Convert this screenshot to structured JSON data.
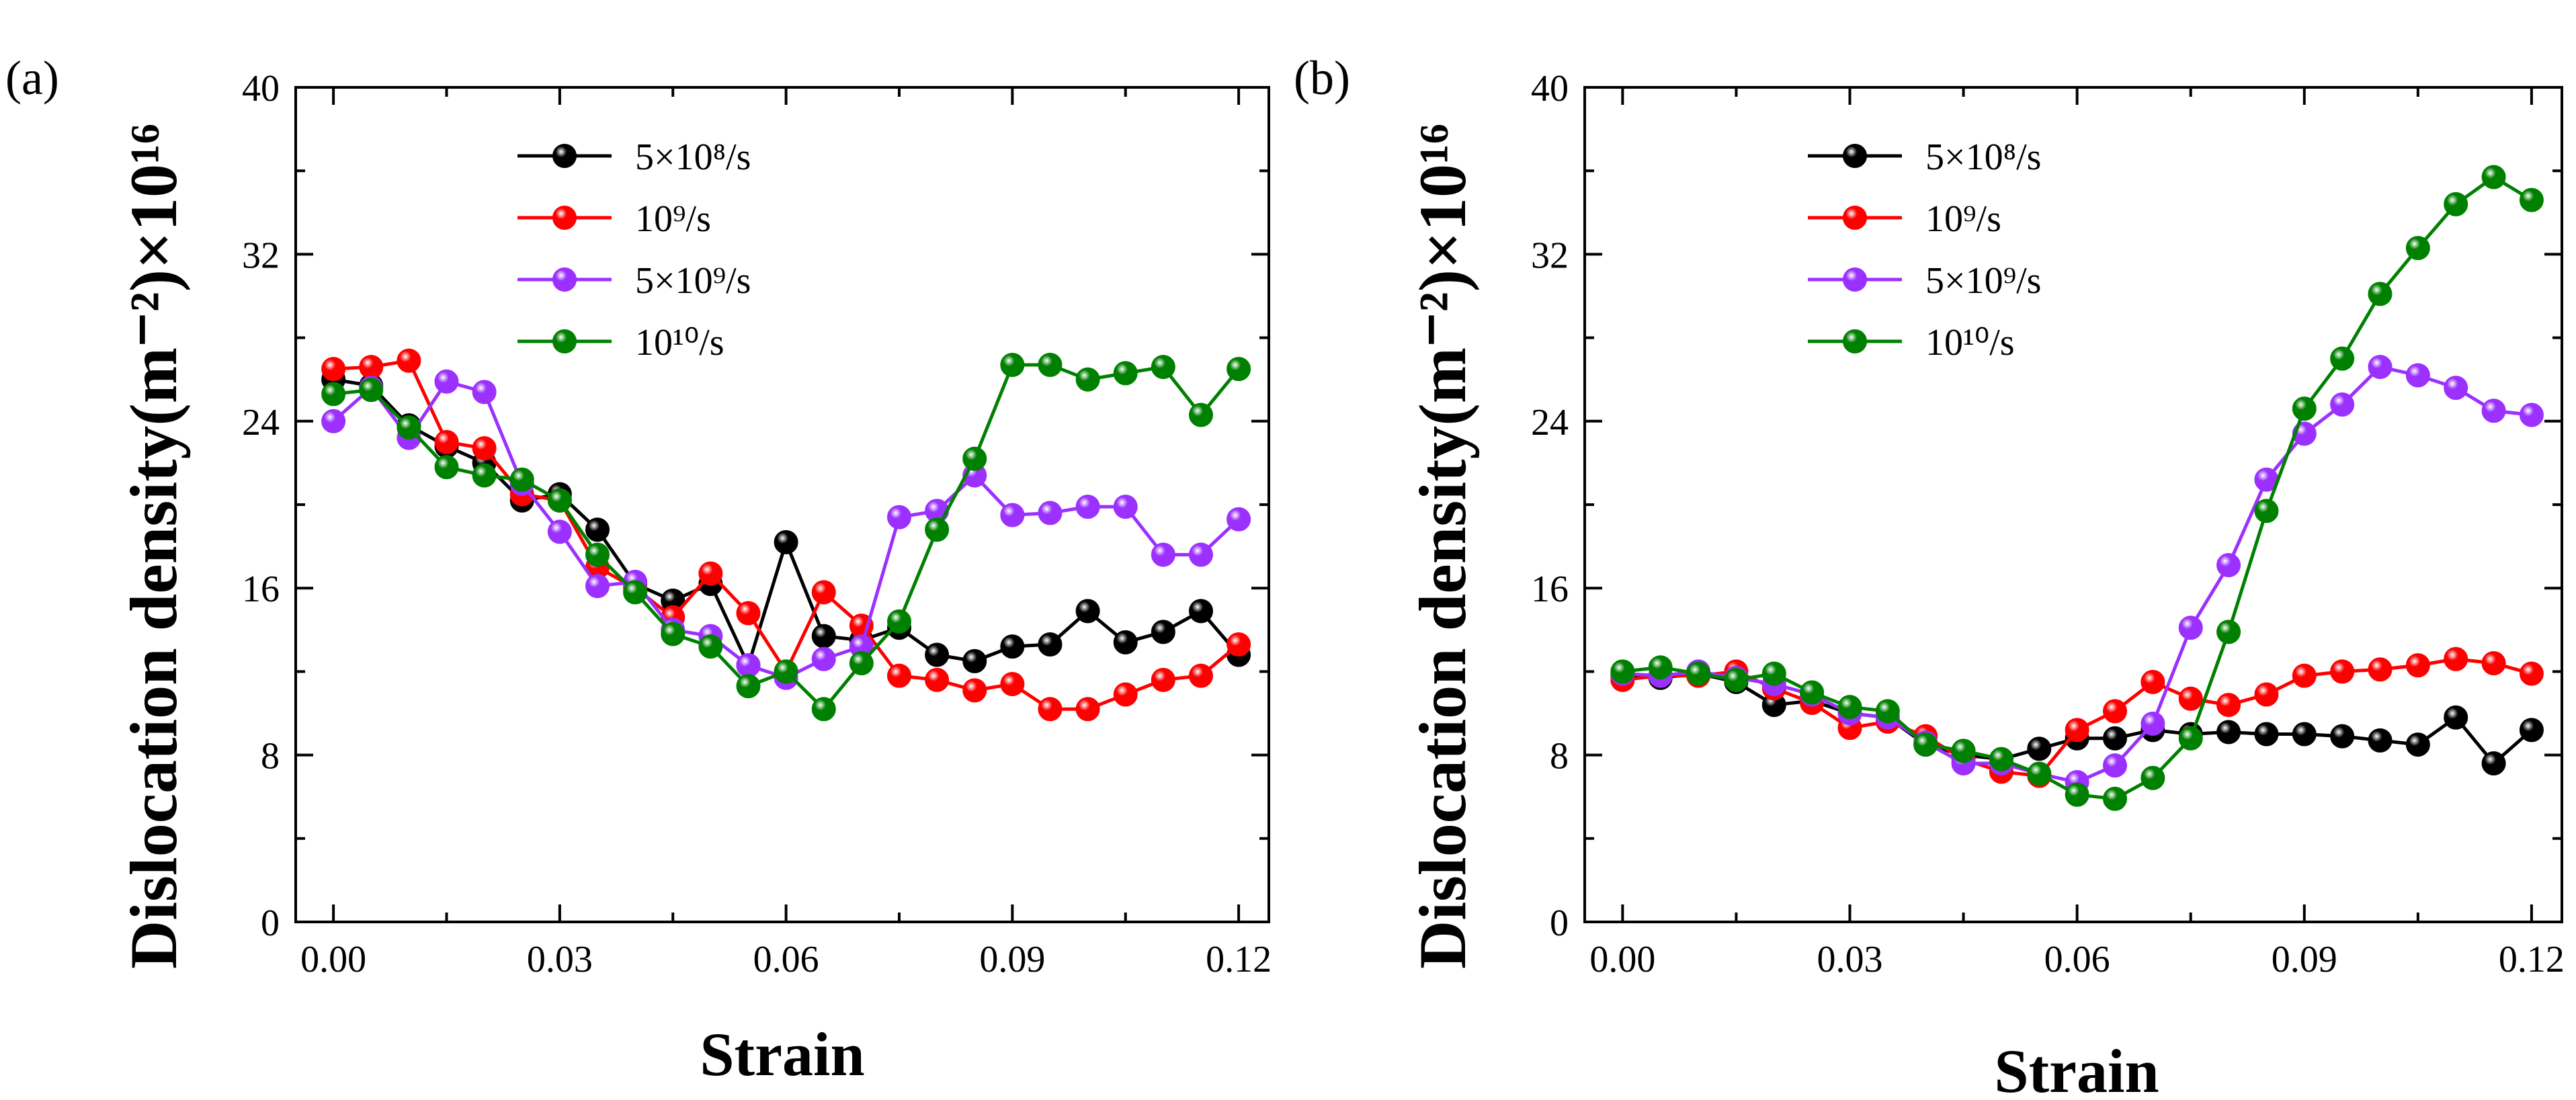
{
  "chart_data": [
    {
      "type": "line",
      "panel_label": "(a)",
      "xlabel": "Strain",
      "ylabel": "Dislocation density(m⁻²)×10¹⁶",
      "xlim": [
        -0.005,
        0.124
      ],
      "ylim": [
        0,
        40
      ],
      "xticks": [
        "0.00",
        "0.03",
        "0.06",
        "0.09",
        "0.12"
      ],
      "yticks": [
        "0",
        "8",
        "16",
        "24",
        "32",
        "40"
      ],
      "legend_position": "top-center",
      "grid": false,
      "x": [
        0.0,
        0.005,
        0.01,
        0.015,
        0.02,
        0.025,
        0.03,
        0.035,
        0.04,
        0.045,
        0.05,
        0.055,
        0.06,
        0.065,
        0.07,
        0.075,
        0.08,
        0.085,
        0.09,
        0.095,
        0.1,
        0.105,
        0.11,
        0.115,
        0.12
      ],
      "series": [
        {
          "name": "5×10⁸/s",
          "color": "#000000",
          "values": [
            26.0,
            25.7,
            23.8,
            22.8,
            22.0,
            20.2,
            20.5,
            18.8,
            16.2,
            15.4,
            16.2,
            12.3,
            18.2,
            13.7,
            13.5,
            14.1,
            12.8,
            12.5,
            13.2,
            13.3,
            14.9,
            13.4,
            13.9,
            14.9,
            12.8
          ]
        },
        {
          "name": "10⁹/s",
          "color": "#ff0000",
          "values": [
            26.5,
            26.6,
            26.9,
            23.0,
            22.7,
            20.5,
            20.2,
            17.0,
            16.0,
            14.6,
            16.7,
            14.8,
            12.0,
            15.8,
            14.2,
            11.8,
            11.6,
            11.1,
            11.4,
            10.2,
            10.2,
            10.9,
            11.6,
            11.8,
            13.3
          ]
        },
        {
          "name": "5×10⁹/s",
          "color": "#9b30ff",
          "values": [
            24.0,
            25.6,
            23.2,
            25.9,
            25.4,
            21.0,
            18.7,
            16.1,
            16.3,
            14.0,
            13.7,
            12.3,
            11.7,
            12.6,
            13.2,
            19.4,
            19.7,
            21.4,
            19.5,
            19.6,
            19.9,
            19.9,
            17.6,
            17.6,
            19.3
          ]
        },
        {
          "name": "10¹⁰/s",
          "color": "#008000",
          "values": [
            25.3,
            25.5,
            23.7,
            21.8,
            21.4,
            21.2,
            20.2,
            17.6,
            15.8,
            13.8,
            13.2,
            11.3,
            12.0,
            10.2,
            12.4,
            14.4,
            18.8,
            22.2,
            26.7,
            26.7,
            26.0,
            26.3,
            26.6,
            24.3,
            26.5
          ]
        }
      ]
    },
    {
      "type": "line",
      "panel_label": "(b)",
      "xlabel": "Strain",
      "ylabel": "Dislocation density(m⁻²)×10¹⁶",
      "xlim": [
        -0.005,
        0.124
      ],
      "ylim": [
        0,
        40
      ],
      "xticks": [
        "0.00",
        "0.03",
        "0.06",
        "0.09",
        "0.12"
      ],
      "yticks": [
        "0",
        "8",
        "16",
        "24",
        "32",
        "40"
      ],
      "legend_position": "top-center",
      "grid": false,
      "x": [
        0.0,
        0.005,
        0.01,
        0.015,
        0.02,
        0.025,
        0.03,
        0.035,
        0.04,
        0.045,
        0.05,
        0.055,
        0.06,
        0.065,
        0.07,
        0.075,
        0.08,
        0.085,
        0.09,
        0.095,
        0.1,
        0.105,
        0.11,
        0.115,
        0.12
      ],
      "series": [
        {
          "name": "5×10⁸/s",
          "color": "#000000",
          "values": [
            11.8,
            11.7,
            11.9,
            11.5,
            10.4,
            10.6,
            10.0,
            9.8,
            8.5,
            8.0,
            7.8,
            8.3,
            8.8,
            8.8,
            9.2,
            9.0,
            9.1,
            9.0,
            9.0,
            8.9,
            8.7,
            8.5,
            9.8,
            7.6,
            9.2
          ]
        },
        {
          "name": "10⁹/s",
          "color": "#ff0000",
          "values": [
            11.6,
            11.8,
            11.8,
            12.0,
            11.2,
            10.5,
            9.3,
            9.6,
            8.9,
            7.8,
            7.2,
            7.0,
            9.2,
            10.1,
            11.5,
            10.7,
            10.4,
            10.9,
            11.8,
            12.0,
            12.1,
            12.3,
            12.6,
            12.4,
            11.9
          ]
        },
        {
          "name": "5×10⁹/s",
          "color": "#9b30ff",
          "values": [
            11.9,
            11.8,
            12.0,
            11.7,
            11.4,
            10.9,
            10.0,
            9.8,
            8.6,
            7.6,
            7.6,
            7.1,
            6.7,
            7.5,
            9.5,
            14.1,
            17.1,
            21.2,
            23.4,
            24.8,
            26.6,
            26.2,
            25.6,
            24.5,
            24.3
          ]
        },
        {
          "name": "10¹⁰/s",
          "color": "#008000",
          "values": [
            12.0,
            12.2,
            11.9,
            11.6,
            11.9,
            11.0,
            10.3,
            10.1,
            8.5,
            8.2,
            7.8,
            7.1,
            6.1,
            5.9,
            6.9,
            8.8,
            13.9,
            19.7,
            24.6,
            27.0,
            30.1,
            32.3,
            34.4,
            35.7,
            34.6
          ]
        }
      ]
    }
  ]
}
